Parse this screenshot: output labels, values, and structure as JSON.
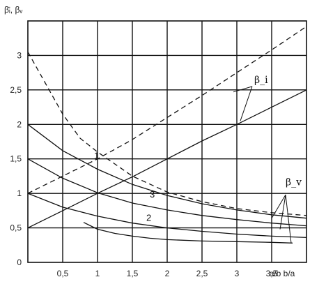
{
  "chart_data": {
    "type": "line",
    "title": "",
    "ylabel": "β̄ᵢ, βᵥ",
    "xlabel": "a/b  b/a",
    "xlim": [
      0,
      4
    ],
    "ylim": [
      0,
      3.5
    ],
    "x_ticks": [
      {
        "value": 0.5,
        "label": "0,5"
      },
      {
        "value": 1,
        "label": "1"
      },
      {
        "value": 1.5,
        "label": "1,5"
      },
      {
        "value": 2,
        "label": "2"
      },
      {
        "value": 2.5,
        "label": "2,5"
      },
      {
        "value": 3,
        "label": "3"
      },
      {
        "value": 3.5,
        "label": "3,5"
      }
    ],
    "y_ticks": [
      {
        "value": 0,
        "label": "0"
      },
      {
        "value": 0.5,
        "label": "0,5"
      },
      {
        "value": 1,
        "label": "1"
      },
      {
        "value": 1.5,
        "label": "1,5"
      },
      {
        "value": 2,
        "label": "2"
      },
      {
        "value": 2.5,
        "label": "2,5"
      },
      {
        "value": 3,
        "label": "3"
      }
    ],
    "grid": true,
    "series": [
      {
        "name": "",
        "style": "dashed",
        "x": [
          0,
          0.25,
          0.5,
          0.75,
          1,
          1.5,
          2,
          2.5,
          3,
          3.5,
          4
        ],
        "y": [
          3.05,
          2.6,
          2.15,
          1.8,
          1.6,
          1.25,
          1.02,
          0.88,
          0.78,
          0.72,
          0.68
        ]
      },
      {
        "name": "",
        "style": "dashed",
        "x": [
          0,
          0.5,
          1,
          1.5,
          2,
          2.5,
          3,
          3.5,
          4
        ],
        "y": [
          1.0,
          1.25,
          1.5,
          1.78,
          2.1,
          2.42,
          2.75,
          3.08,
          3.42
        ]
      },
      {
        "name": "1",
        "style": "solid",
        "x": [
          0,
          0.5,
          1,
          1.5,
          2,
          2.5,
          3,
          3.5,
          4
        ],
        "y": [
          2.0,
          1.62,
          1.35,
          1.13,
          0.97,
          0.85,
          0.76,
          0.69,
          0.64
        ]
      },
      {
        "name": "3",
        "style": "solid",
        "x": [
          0,
          0.5,
          1,
          1.5,
          2,
          2.5,
          3,
          3.5,
          4
        ],
        "y": [
          1.5,
          1.22,
          1.01,
          0.86,
          0.76,
          0.68,
          0.62,
          0.57,
          0.53
        ]
      },
      {
        "name": "2",
        "style": "solid",
        "x": [
          0,
          0.5,
          1,
          1.5,
          2,
          2.5,
          3,
          3.5,
          4
        ],
        "y": [
          1.0,
          0.8,
          0.67,
          0.57,
          0.5,
          0.45,
          0.41,
          0.38,
          0.36
        ]
      },
      {
        "name": "",
        "style": "solid",
        "x": [
          0,
          0.5,
          1,
          1.5,
          2,
          2.5,
          3,
          3.5,
          4
        ],
        "y": [
          0.5,
          0.75,
          1.0,
          1.24,
          1.5,
          1.76,
          2.0,
          2.25,
          2.5
        ]
      },
      {
        "name": "",
        "style": "solid",
        "x": [
          0.8,
          1.0,
          1.25,
          1.5,
          1.75,
          2.0,
          2.5,
          3.0,
          3.5,
          3.8
        ],
        "y": [
          0.58,
          0.48,
          0.42,
          0.38,
          0.35,
          0.33,
          0.31,
          0.3,
          0.29,
          0.28
        ]
      }
    ],
    "annotations": [
      {
        "text": "β_i",
        "x": 3.25,
        "y": 2.6
      },
      {
        "text": "β_v",
        "x": 3.7,
        "y": 1.12
      }
    ]
  }
}
